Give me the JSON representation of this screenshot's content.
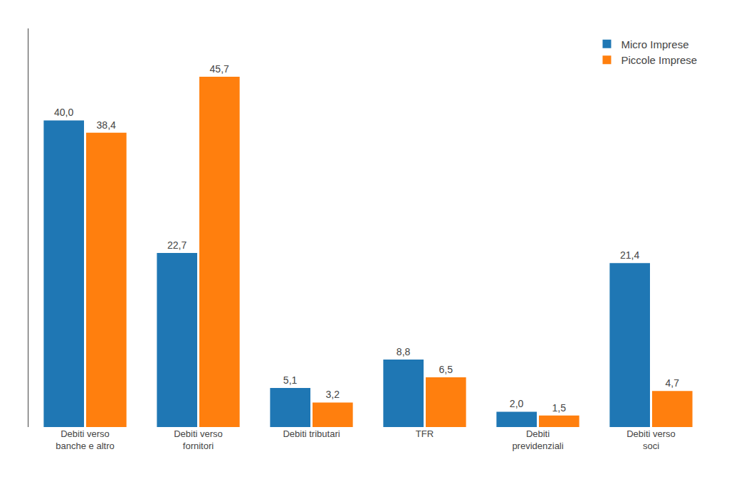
{
  "chart_data": {
    "type": "bar",
    "categories": [
      "Debiti verso\nbanche e altro",
      "Debiti verso\nfornitori",
      "Debiti tributari",
      "TFR",
      "Debiti\nprevidenziali",
      "Debiti verso\nsoci"
    ],
    "series": [
      {
        "name": "Micro Imprese",
        "values": [
          40.0,
          22.7,
          5.1,
          8.8,
          2.0,
          21.4
        ],
        "value_labels": [
          "40,0",
          "22,7",
          "5,1",
          "8,8",
          "2,0",
          "21,4"
        ]
      },
      {
        "name": "Piccole Imprese",
        "values": [
          38.4,
          45.7,
          3.2,
          6.5,
          1.5,
          4.7
        ],
        "value_labels": [
          "38,4",
          "45,7",
          "3,2",
          "6,5",
          "1,5",
          "4,7"
        ]
      }
    ],
    "ylim": [
      0,
      52
    ],
    "grid": false,
    "legend": "upper right",
    "data_labels": true,
    "tick_labels": "x"
  }
}
